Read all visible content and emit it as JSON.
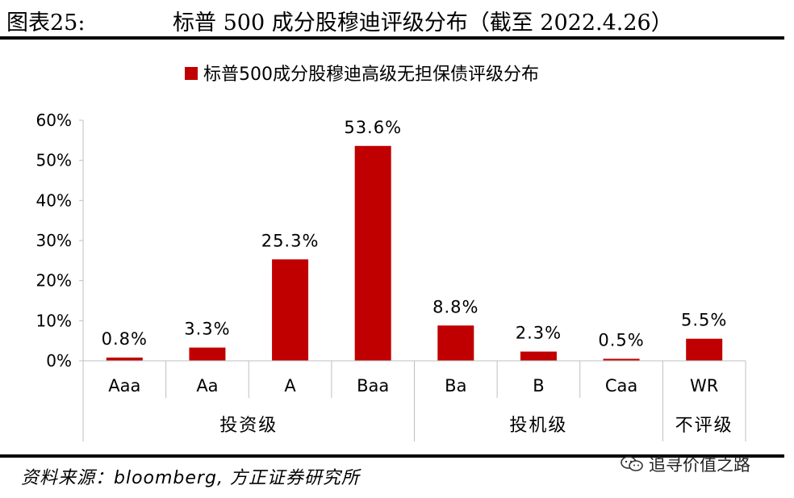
{
  "header": {
    "figure_label": "图表25:",
    "title": "标普 500 成分股穆迪评级分布（截至 2022.4.26）"
  },
  "chart_data": {
    "type": "bar",
    "title": "",
    "xlabel": "",
    "ylabel": "",
    "ylim": [
      0,
      60
    ],
    "yticks": [
      0,
      10,
      20,
      30,
      40,
      50,
      60
    ],
    "ytick_labels": [
      "0%",
      "10%",
      "20%",
      "30%",
      "40%",
      "50%",
      "60%"
    ],
    "grid": false,
    "legend_position": "top",
    "categories": [
      "Aaa",
      "Aa",
      "A",
      "Baa",
      "Ba",
      "B",
      "Caa",
      "WR"
    ],
    "series": [
      {
        "name": "标普500成分股穆迪高级无担保债评级分布",
        "values": [
          0.8,
          3.3,
          25.3,
          53.6,
          8.8,
          2.3,
          0.5,
          5.5
        ],
        "data_labels": [
          "0.8%",
          "3.3%",
          "25.3%",
          "53.6%",
          "8.8%",
          "2.3%",
          "0.5%",
          "5.5%"
        ],
        "color": "#C00000"
      }
    ],
    "groups": [
      {
        "label": "投资级",
        "categories": [
          "Aaa",
          "Aa",
          "A",
          "Baa"
        ]
      },
      {
        "label": "投机级",
        "categories": [
          "Ba",
          "B",
          "Caa"
        ]
      },
      {
        "label": "不评级",
        "categories": [
          "WR"
        ]
      }
    ]
  },
  "footer": {
    "source": "资料来源：bloomberg, 方正证券研究所",
    "watermark_text": "追寻价值之路",
    "watermark_icon": "wechat-icon"
  }
}
